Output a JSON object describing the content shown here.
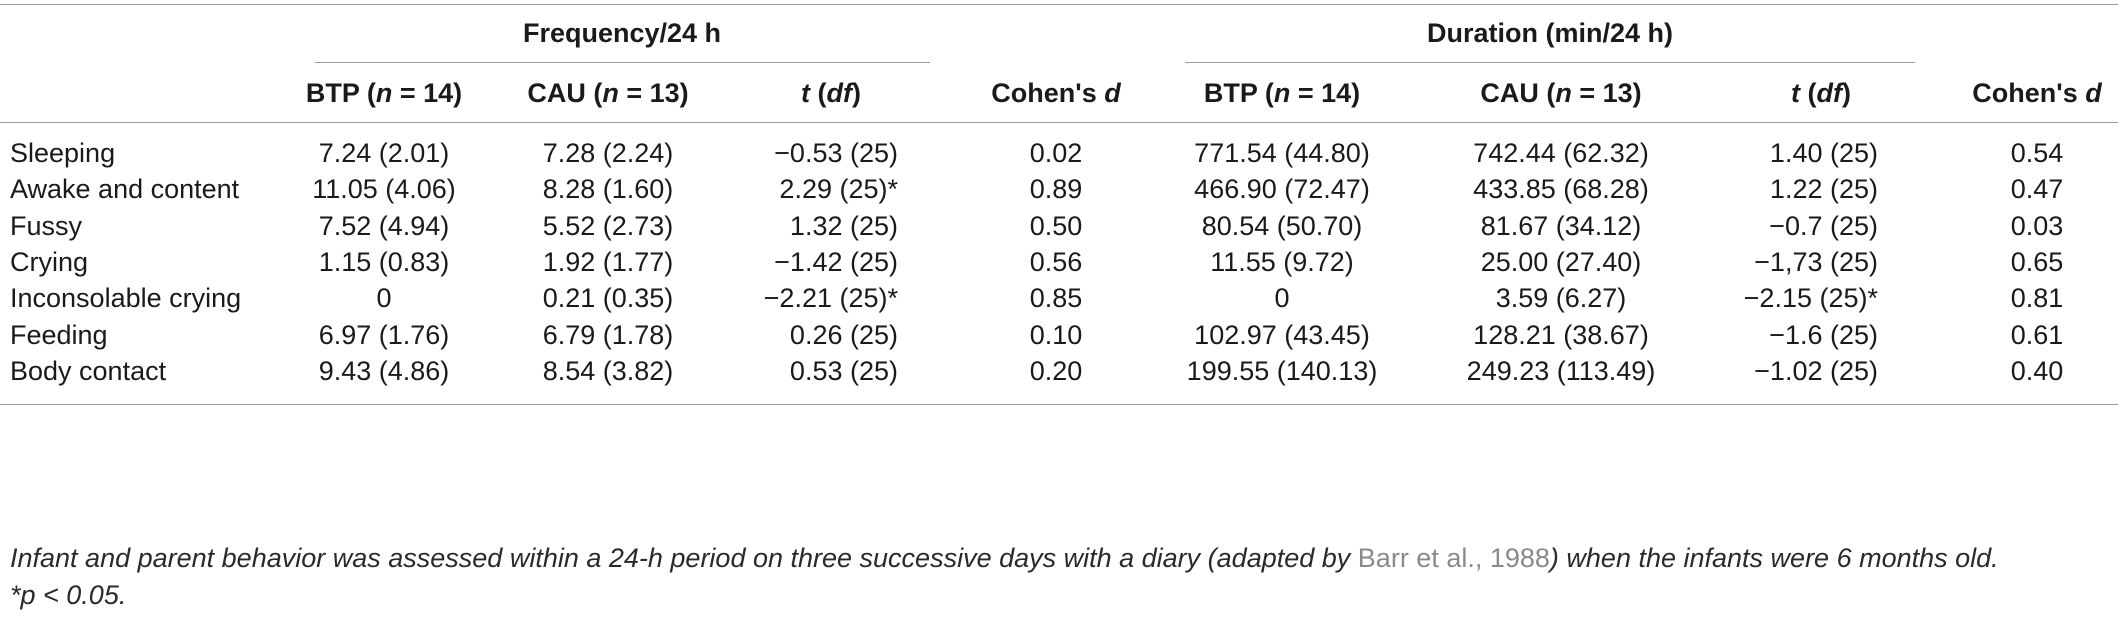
{
  "table": {
    "group_headers": {
      "frequency": "Frequency/24 h",
      "duration": "Duration (min/24 h)"
    },
    "column_headers": {
      "btp_prefix": "BTP (",
      "btp_n": "n",
      "btp_suffix": " = 14)",
      "cau_prefix": "CAU (",
      "cau_n": "n",
      "cau_suffix": " = 13)",
      "t": "t",
      "df": "df",
      "cohen": "Cohen's ",
      "cohen_d": "d"
    },
    "rows": [
      {
        "label": "Sleeping",
        "f_btp": "7.24 (2.01)",
        "f_cau": "7.28 (2.24)",
        "f_t": "−0.53 (25)",
        "f_d": "0.02",
        "d_btp": "771.54 (44.80)",
        "d_cau": "742.44 (62.32)",
        "d_t": "1.40 (25)",
        "d_d": "0.54"
      },
      {
        "label": "Awake and content",
        "f_btp": "11.05 (4.06)",
        "f_cau": "8.28 (1.60)",
        "f_t": "2.29 (25)*",
        "f_d": "0.89",
        "d_btp": "466.90 (72.47)",
        "d_cau": "433.85 (68.28)",
        "d_t": "1.22 (25)",
        "d_d": "0.47"
      },
      {
        "label": "Fussy",
        "f_btp": "7.52 (4.94)",
        "f_cau": "5.52 (2.73)",
        "f_t": "1.32 (25)",
        "f_d": "0.50",
        "d_btp": "80.54 (50.70)",
        "d_cau": "81.67 (34.12)",
        "d_t": "−0.7 (25)",
        "d_d": "0.03"
      },
      {
        "label": "Crying",
        "f_btp": "1.15 (0.83)",
        "f_cau": "1.92 (1.77)",
        "f_t": "−1.42 (25)",
        "f_d": "0.56",
        "d_btp": "11.55 (9.72)",
        "d_cau": "25.00 (27.40)",
        "d_t": "−1,73 (25)",
        "d_d": "0.65"
      },
      {
        "label": "Inconsolable crying",
        "f_btp": "0",
        "f_cau": "0.21 (0.35)",
        "f_t": "−2.21 (25)*",
        "f_d": "0.85",
        "d_btp": "0",
        "d_cau": "3.59 (6.27)",
        "d_t": "−2.15 (25)*",
        "d_d": "0.81"
      },
      {
        "label": "Feeding",
        "f_btp": "6.97 (1.76)",
        "f_cau": "6.79 (1.78)",
        "f_t": "0.26 (25)",
        "f_d": "0.10",
        "d_btp": "102.97 (43.45)",
        "d_cau": "128.21 (38.67)",
        "d_t": "−1.6 (25)",
        "d_d": "0.61"
      },
      {
        "label": "Body contact",
        "f_btp": "9.43 (4.86)",
        "f_cau": "8.54 (3.82)",
        "f_t": "0.53 (25)",
        "f_d": "0.20",
        "d_btp": "199.55 (140.13)",
        "d_cau": "249.23 (113.49)",
        "d_t": "−1.02 (25)",
        "d_d": "0.40"
      }
    ]
  },
  "footnote": {
    "text_before": "Infant and parent behavior was assessed within a 24-h period on three successive days with a diary (adapted by ",
    "citation": "Barr et al., 1988",
    "text_after": ") when the infants were 6 months old.",
    "significance": "*p < 0.05."
  }
}
